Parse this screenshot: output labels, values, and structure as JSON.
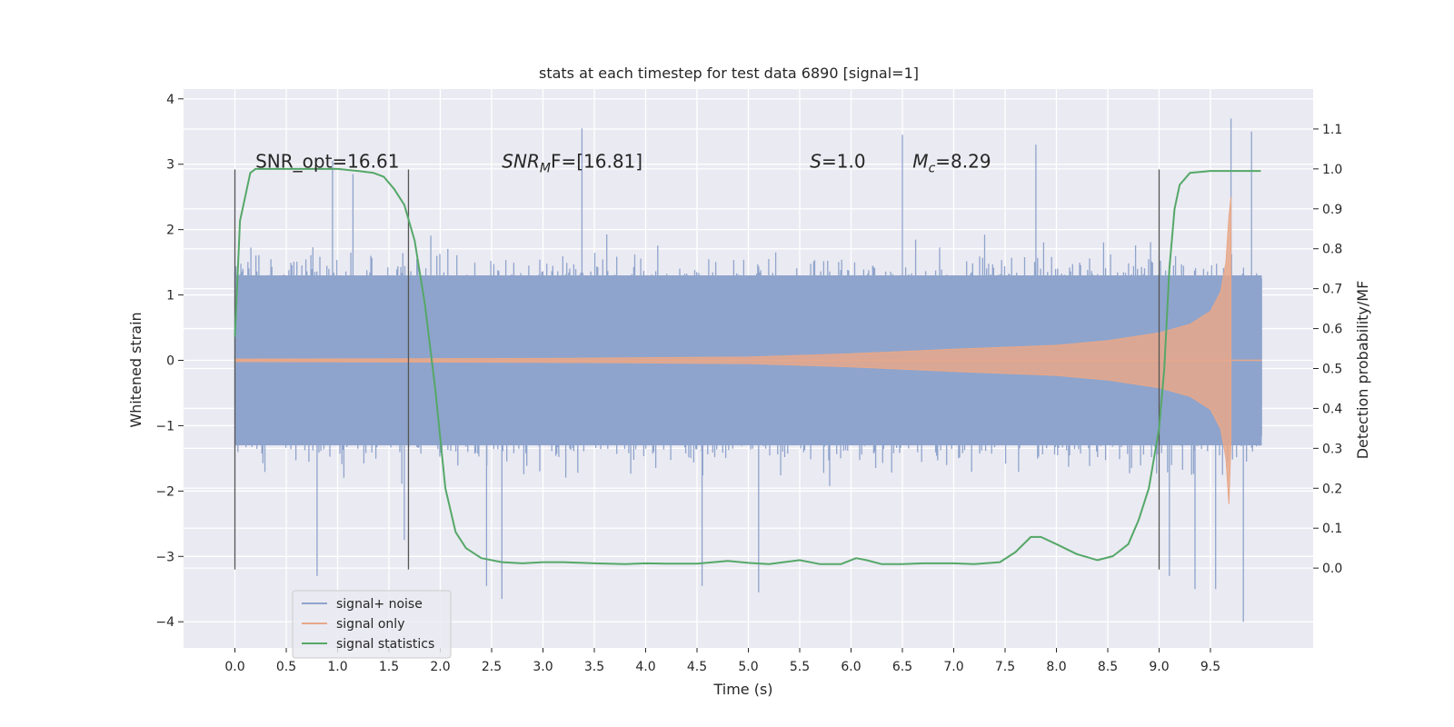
{
  "chart_data": {
    "type": "line",
    "title": "stats at each timestep for test data 6890 [signal=1]",
    "xlabel": "Time (s)",
    "ylabel": "Whitened strain",
    "ylabel_right": "Detection probability/MF",
    "xlim": [
      -0.5,
      10.5
    ],
    "ylim": [
      -4.4,
      4.15
    ],
    "ylim_right": [
      -0.2,
      1.2
    ],
    "x_ticks": [
      0.0,
      0.5,
      1.0,
      1.5,
      2.0,
      2.5,
      3.0,
      3.5,
      4.0,
      4.5,
      5.0,
      5.5,
      6.0,
      6.5,
      7.0,
      7.5,
      8.0,
      8.5,
      9.0,
      9.5
    ],
    "x_tick_labels": [
      "0.0",
      "0.5",
      "1.0",
      "1.5",
      "2.0",
      "2.5",
      "3.0",
      "3.5",
      "4.0",
      "4.5",
      "5.0",
      "5.5",
      "6.0",
      "6.5",
      "7.0",
      "7.5",
      "8.0",
      "8.5",
      "9.0",
      "9.5"
    ],
    "y_ticks": [
      -4,
      -3,
      -2,
      -1,
      0,
      1,
      2,
      3,
      4
    ],
    "y_tick_labels": [
      "−4",
      "−3",
      "−2",
      "−1",
      "0",
      "1",
      "2",
      "3",
      "4"
    ],
    "y_right_ticks": [
      0.0,
      0.1,
      0.2,
      0.3,
      0.4,
      0.5,
      0.6,
      0.7,
      0.8,
      0.9,
      1.0,
      1.1
    ],
    "y_right_tick_labels": [
      "0.0",
      "0.1",
      "0.2",
      "0.3",
      "0.4",
      "0.5",
      "0.6",
      "0.7",
      "0.8",
      "0.9",
      "1.0",
      "1.1"
    ],
    "grid": true,
    "legend": {
      "placement": "lower-left",
      "entries": [
        {
          "label": "signal+ noise",
          "color": "#8fa4cc"
        },
        {
          "label": "signal only",
          "color": "#e7a88a"
        },
        {
          "label": "signal statistics",
          "color": "#55a868"
        }
      ]
    },
    "annotations": [
      {
        "text": "SNR_opt=16.61",
        "x": 0.2,
        "y": 2.95
      },
      {
        "text_main": "SNR",
        "text_sub": "M",
        "text_rest": "F=[16.81]",
        "x": 2.6,
        "y": 2.95
      },
      {
        "text_main": "S",
        "text_rest": "=1.0",
        "x": 5.6,
        "y": 2.95
      },
      {
        "text_main": "M",
        "text_sub": "c",
        "text_rest": "=8.29",
        "x": 6.6,
        "y": 2.95
      }
    ],
    "vlines": [
      {
        "x": 0.0,
        "ymin": -3.2,
        "ymax": 2.92
      },
      {
        "x": 1.69,
        "ymin": -3.2,
        "ymax": 2.92
      },
      {
        "x": 9.0,
        "ymin": -3.2,
        "ymax": 2.92
      }
    ],
    "series": [
      {
        "name": "signal+ noise",
        "color": "#8fa4cc",
        "x_range": [
          0.0,
          10.0
        ],
        "band_inner": 1.3,
        "band_outer": 2.6,
        "spikes": [
          {
            "x": 0.95,
            "y": 3.05
          },
          {
            "x": 1.15,
            "y": 2.85
          },
          {
            "x": 1.65,
            "y": -2.75
          },
          {
            "x": 2.6,
            "y": -3.65
          },
          {
            "x": 2.45,
            "y": -3.45
          },
          {
            "x": 3.38,
            "y": 3.55
          },
          {
            "x": 4.55,
            "y": -3.45
          },
          {
            "x": 5.1,
            "y": -3.55
          },
          {
            "x": 6.5,
            "y": 3.45
          },
          {
            "x": 7.8,
            "y": 3.3
          },
          {
            "x": 9.7,
            "y": 3.7
          },
          {
            "x": 9.55,
            "y": -3.5
          },
          {
            "x": 9.1,
            "y": -3.3
          },
          {
            "x": 9.35,
            "y": -3.5
          },
          {
            "x": 9.82,
            "y": -4.0
          },
          {
            "x": 9.9,
            "y": 3.5
          },
          {
            "x": 0.8,
            "y": -3.3
          }
        ]
      },
      {
        "name": "signal only",
        "color": "#e7a88a",
        "x": [
          0.0,
          3.0,
          5.0,
          6.0,
          7.0,
          8.0,
          8.5,
          9.0,
          9.3,
          9.5,
          9.6,
          9.65,
          9.68,
          9.7
        ],
        "envelope": [
          0.02,
          0.03,
          0.05,
          0.1,
          0.17,
          0.23,
          0.3,
          0.42,
          0.55,
          0.75,
          1.05,
          1.5,
          2.2,
          2.5
        ],
        "after": 0.0,
        "x_end": 10.0
      },
      {
        "name": "signal statistics",
        "color": "#55a868",
        "axis": "right",
        "x": [
          0.0,
          0.05,
          0.1,
          0.15,
          0.2,
          0.3,
          0.5,
          1.0,
          1.2,
          1.35,
          1.45,
          1.55,
          1.65,
          1.75,
          1.85,
          1.95,
          2.05,
          2.15,
          2.25,
          2.4,
          2.6,
          2.8,
          3.0,
          3.2,
          3.5,
          3.8,
          4.0,
          4.2,
          4.5,
          4.8,
          5.0,
          5.2,
          5.5,
          5.7,
          5.9,
          6.05,
          6.15,
          6.3,
          6.5,
          6.7,
          7.0,
          7.2,
          7.45,
          7.6,
          7.75,
          7.85,
          8.0,
          8.2,
          8.4,
          8.55,
          8.7,
          8.8,
          8.9,
          9.0,
          9.05,
          9.1,
          9.15,
          9.2,
          9.3,
          9.5,
          9.7,
          9.99
        ],
        "y": [
          0.58,
          0.87,
          0.93,
          0.99,
          1.0,
          1.0,
          1.0,
          1.0,
          0.995,
          0.99,
          0.98,
          0.95,
          0.91,
          0.82,
          0.66,
          0.45,
          0.2,
          0.09,
          0.05,
          0.025,
          0.015,
          0.012,
          0.015,
          0.015,
          0.012,
          0.01,
          0.012,
          0.011,
          0.011,
          0.018,
          0.013,
          0.01,
          0.02,
          0.01,
          0.01,
          0.025,
          0.02,
          0.01,
          0.01,
          0.012,
          0.012,
          0.01,
          0.015,
          0.04,
          0.078,
          0.078,
          0.06,
          0.035,
          0.02,
          0.03,
          0.06,
          0.12,
          0.2,
          0.35,
          0.5,
          0.75,
          0.9,
          0.96,
          0.99,
          0.995,
          0.995,
          0.995
        ]
      }
    ]
  }
}
